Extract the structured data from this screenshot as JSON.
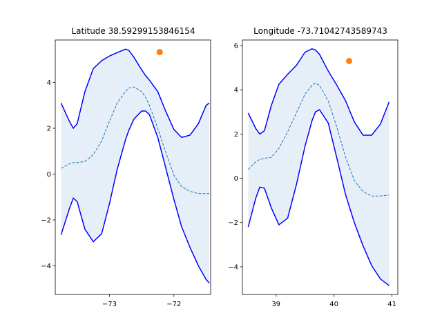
{
  "colors": {
    "band_fill": "#e6eff8",
    "bound_line": "#0000ff",
    "mean_line": "#1f77b4",
    "observation_point": "#ff7f0e",
    "axes": "#000000",
    "background": "#ffffff"
  },
  "chart_data": [
    {
      "type": "line",
      "title": "Latitude 38.59299153846154",
      "xlabel": "",
      "ylabel": "",
      "xlim": [
        -73.84,
        -71.43
      ],
      "ylim": [
        -5.25,
        5.85
      ],
      "xticks": [
        -73,
        -72
      ],
      "xtick_labels": [
        "−73",
        "−72"
      ],
      "yticks": [
        -4,
        -2,
        0,
        2,
        4
      ],
      "ytick_labels": [
        "−4",
        "−2",
        "0",
        "2",
        "4"
      ],
      "grid": false,
      "legend": "none",
      "x": [
        -73.75,
        -73.62,
        -73.56,
        -73.5,
        -73.38,
        -73.25,
        -73.12,
        -73.0,
        -72.88,
        -72.75,
        -72.7,
        -72.62,
        -72.5,
        -72.44,
        -72.38,
        -72.25,
        -72.12,
        -72.0,
        -71.88,
        -71.75,
        -71.62,
        -71.5,
        -71.45
      ],
      "series": [
        {
          "role": "upper",
          "style": "solid",
          "values": [
            3.1,
            2.3,
            2.0,
            2.2,
            3.6,
            4.6,
            4.95,
            5.15,
            5.3,
            5.45,
            5.4,
            5.1,
            4.55,
            4.3,
            4.1,
            3.6,
            2.7,
            1.95,
            1.6,
            1.7,
            2.2,
            3.0,
            3.1
          ]
        },
        {
          "role": "lower",
          "style": "solid",
          "values": [
            -2.65,
            -1.5,
            -1.05,
            -1.2,
            -2.4,
            -2.95,
            -2.6,
            -1.3,
            0.2,
            1.5,
            1.9,
            2.4,
            2.75,
            2.75,
            2.6,
            1.6,
            0.2,
            -1.1,
            -2.3,
            -3.2,
            -4.0,
            -4.6,
            -4.75
          ]
        },
        {
          "role": "mean",
          "style": "dashed",
          "values": [
            0.25,
            0.45,
            0.5,
            0.5,
            0.55,
            0.85,
            1.45,
            2.3,
            3.1,
            3.6,
            3.75,
            3.8,
            3.6,
            3.35,
            3.0,
            2.0,
            0.9,
            -0.05,
            -0.55,
            -0.75,
            -0.85,
            -0.85,
            -0.85
          ]
        }
      ],
      "points": [
        {
          "x": -72.22,
          "y": 5.32
        }
      ]
    },
    {
      "type": "line",
      "title": "Longitude -73.71042743589743",
      "xlabel": "",
      "ylabel": "",
      "xlim": [
        38.42,
        41.1
      ],
      "ylim": [
        -5.25,
        6.25
      ],
      "xticks": [
        39,
        40,
        41
      ],
      "xtick_labels": [
        "39",
        "40",
        "41"
      ],
      "yticks": [
        -4,
        -2,
        0,
        2,
        4,
        6
      ],
      "ytick_labels": [
        "−4",
        "−2",
        "0",
        "2",
        "4",
        "6"
      ],
      "grid": false,
      "legend": "none",
      "x": [
        38.52,
        38.65,
        38.72,
        38.8,
        38.92,
        39.05,
        39.2,
        39.35,
        39.5,
        39.62,
        39.68,
        39.75,
        39.9,
        40.05,
        40.2,
        40.35,
        40.5,
        40.65,
        40.8,
        40.95
      ],
      "series": [
        {
          "role": "upper",
          "style": "solid",
          "values": [
            2.95,
            2.25,
            2.0,
            2.15,
            3.3,
            4.25,
            4.7,
            5.1,
            5.7,
            5.85,
            5.8,
            5.6,
            4.85,
            4.2,
            3.5,
            2.55,
            1.95,
            1.95,
            2.45,
            3.45
          ]
        },
        {
          "role": "lower",
          "style": "solid",
          "values": [
            -2.2,
            -0.9,
            -0.4,
            -0.45,
            -1.35,
            -2.1,
            -1.8,
            -0.3,
            1.45,
            2.6,
            3.0,
            3.1,
            2.5,
            0.9,
            -0.75,
            -2.0,
            -3.05,
            -3.95,
            -4.55,
            -4.85
          ]
        },
        {
          "role": "mean",
          "style": "dashed",
          "values": [
            0.4,
            0.75,
            0.85,
            0.9,
            0.95,
            1.35,
            2.1,
            2.95,
            3.8,
            4.2,
            4.3,
            4.2,
            3.5,
            2.3,
            0.95,
            -0.1,
            -0.6,
            -0.8,
            -0.8,
            -0.75
          ]
        }
      ],
      "points": [
        {
          "x": 40.26,
          "y": 5.3
        }
      ]
    }
  ]
}
